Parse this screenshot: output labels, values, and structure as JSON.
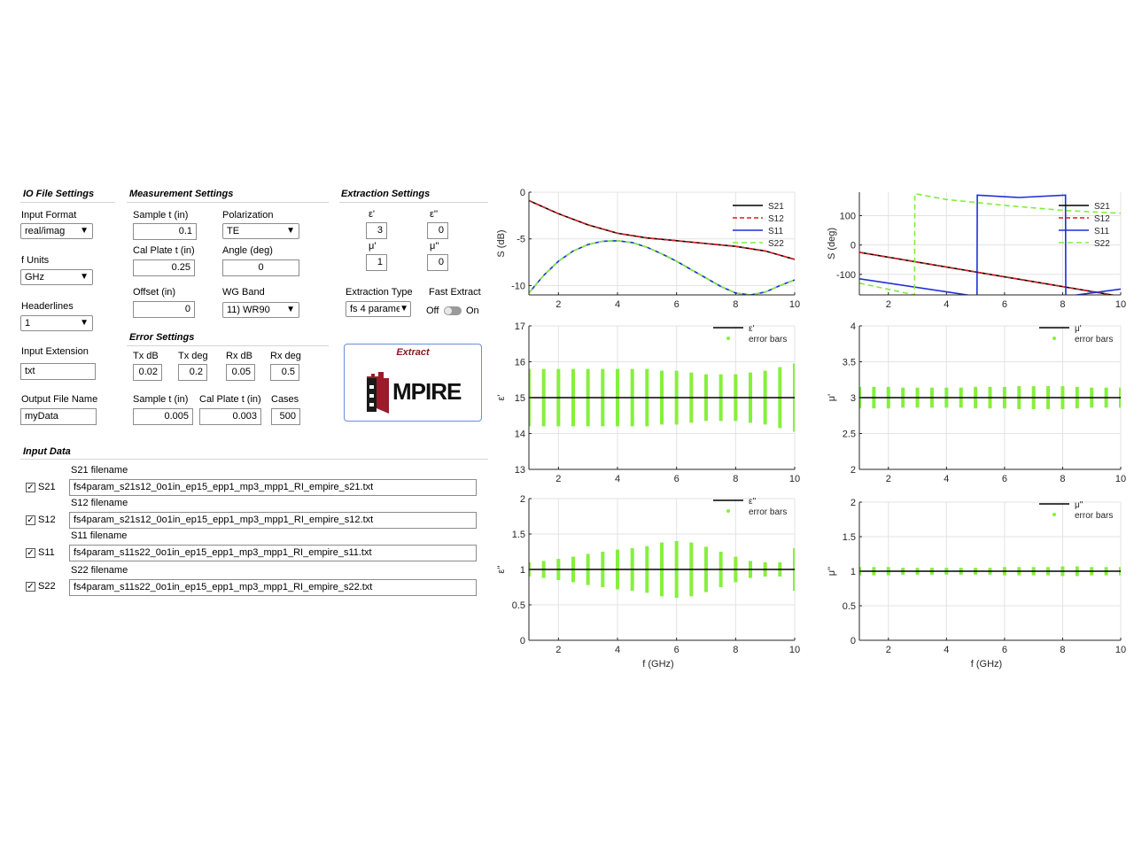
{
  "io": {
    "title": "IO File Settings",
    "input_format_label": "Input Format",
    "input_format": "real/imag",
    "f_units_label": "f Units",
    "f_units": "GHz",
    "headerlines_label": "Headerlines",
    "headerlines": "1",
    "input_ext_label": "Input Extension",
    "input_ext": "txt",
    "output_name_label": "Output File Name",
    "output_name": "myData"
  },
  "meas": {
    "title": "Measurement Settings",
    "sample_t_label": "Sample t (in)",
    "sample_t": "0.1",
    "polarization_label": "Polarization",
    "polarization": "TE",
    "cal_plate_label": "Cal Plate t (in)",
    "cal_plate": "0.25",
    "angle_label": "Angle (deg)",
    "angle": "0",
    "offset_label": "Offset (in)",
    "offset": "0",
    "wg_band_label": "WG Band",
    "wg_band": "11) WR90"
  },
  "err": {
    "title": "Error Settings",
    "tx_db_label": "Tx dB",
    "tx_db": "0.02",
    "tx_deg_label": "Tx deg",
    "tx_deg": "0.2",
    "rx_db_label": "Rx dB",
    "rx_db": "0.05",
    "rx_deg_label": "Rx deg",
    "rx_deg": "0.5",
    "sample_t_label": "Sample t (in)",
    "sample_t": "0.005",
    "cal_plate_label": "Cal Plate t (in)",
    "cal_plate": "0.003",
    "cases_label": "Cases",
    "cases": "500"
  },
  "ext": {
    "title": "Extraction Settings",
    "eps_re_label": "ε'",
    "eps_re": "3",
    "eps_im_label": "ε''",
    "eps_im": "0",
    "mu_re_label": "μ'",
    "mu_re": "1",
    "mu_im_label": "μ''",
    "mu_im": "0",
    "type_label": "Extraction Type",
    "type": "fs 4 parame",
    "fast_label": "Fast Extract",
    "off": "Off",
    "on": "On",
    "button_label": "Extract",
    "logo_text": "MPIRE"
  },
  "input_data": {
    "title": "Input Data",
    "rows": [
      {
        "check": "S21",
        "label": "S21 filename",
        "file": "fs4param_s21s12_0o1in_ep15_epp1_mp3_mpp1_RI_empire_s21.txt"
      },
      {
        "check": "S12",
        "label": "S12 filename",
        "file": "fs4param_s21s12_0o1in_ep15_epp1_mp3_mpp1_RI_empire_s12.txt"
      },
      {
        "check": "S11",
        "label": "S11 filename",
        "file": "fs4param_s11s22_0o1in_ep15_epp1_mp3_mpp1_RI_empire_s11.txt"
      },
      {
        "check": "S22",
        "label": "S22 filename",
        "file": "fs4param_s11s22_0o1in_ep15_epp1_mp3_mpp1_RI_empire_s22.txt"
      }
    ]
  },
  "colors": {
    "s21": "#000000",
    "s12": "#d62020",
    "s11": "#1f2fd8",
    "s22": "#7fee3a",
    "err": "#86f03c"
  },
  "chart_data": [
    {
      "id": "mag",
      "type": "line",
      "ylabel": "S (dB)",
      "xlabel": "",
      "xlim": [
        1,
        10
      ],
      "ylim": [
        -11,
        0
      ],
      "xticks": [
        2,
        4,
        6,
        8,
        10
      ],
      "yticks": [
        0,
        -5,
        -10
      ],
      "legend": [
        "S21",
        "S12",
        "S11",
        "S22"
      ],
      "legend_position": "top-right",
      "series": [
        {
          "name": "S21",
          "x": [
            1,
            2,
            3,
            4,
            5,
            6,
            7,
            8,
            9,
            10
          ],
          "y": [
            -0.9,
            -2.3,
            -3.5,
            -4.4,
            -4.9,
            -5.2,
            -5.5,
            -5.8,
            -6.3,
            -7.2
          ]
        },
        {
          "name": "S12",
          "x": [
            1,
            2,
            3,
            4,
            5,
            6,
            7,
            8,
            9,
            10
          ],
          "y": [
            -0.9,
            -2.3,
            -3.5,
            -4.4,
            -4.9,
            -5.2,
            -5.5,
            -5.8,
            -6.3,
            -7.2
          ]
        },
        {
          "name": "S11",
          "x": [
            1,
            1.5,
            2,
            2.5,
            3,
            3.5,
            4,
            4.5,
            5,
            5.5,
            6,
            6.5,
            7,
            7.5,
            8,
            8.5,
            9,
            9.5,
            10
          ],
          "y": [
            -10.8,
            -8.9,
            -7.4,
            -6.3,
            -5.6,
            -5.25,
            -5.2,
            -5.4,
            -5.9,
            -6.6,
            -7.4,
            -8.3,
            -9.2,
            -10.1,
            -10.8,
            -11.0,
            -10.7,
            -10.0,
            -9.4
          ]
        },
        {
          "name": "S22",
          "x": [
            1,
            1.5,
            2,
            2.5,
            3,
            3.5,
            4,
            4.5,
            5,
            5.5,
            6,
            6.5,
            7,
            7.5,
            8,
            8.5,
            9,
            9.5,
            10
          ],
          "y": [
            -10.8,
            -8.9,
            -7.4,
            -6.3,
            -5.6,
            -5.25,
            -5.2,
            -5.4,
            -5.9,
            -6.6,
            -7.4,
            -8.3,
            -9.2,
            -10.1,
            -10.8,
            -11.0,
            -10.7,
            -10.0,
            -9.4
          ]
        }
      ]
    },
    {
      "id": "phase",
      "type": "line",
      "ylabel": "S (deg)",
      "xlabel": "",
      "xlim": [
        1,
        10
      ],
      "ylim": [
        -170,
        180
      ],
      "xticks": [
        2,
        4,
        6,
        8,
        10
      ],
      "yticks": [
        100,
        0,
        -100
      ],
      "legend": [
        "S21",
        "S12",
        "S11",
        "S22"
      ],
      "legend_position": "top-right",
      "series": [
        {
          "name": "S21",
          "x": [
            1,
            10
          ],
          "y": [
            -25,
            -175
          ]
        },
        {
          "name": "S12",
          "x": [
            1,
            10
          ],
          "y": [
            -25,
            -175
          ]
        },
        {
          "name": "S11",
          "x": [
            1,
            5.05,
            5.06,
            6.5,
            8.1,
            8.11,
            10
          ],
          "y": [
            -115,
            -175,
            170,
            162,
            170,
            -175,
            -150
          ]
        },
        {
          "name": "S22",
          "x": [
            1,
            2.9,
            2.91,
            4,
            6,
            8,
            10
          ],
          "y": [
            -130,
            -170,
            175,
            155,
            135,
            118,
            108
          ]
        }
      ]
    },
    {
      "id": "eps_re",
      "type": "line",
      "ylabel": "ε'",
      "xlabel": "",
      "xlim": [
        1,
        10
      ],
      "ylim": [
        13,
        17
      ],
      "xticks": [
        2,
        4,
        6,
        8,
        10
      ],
      "yticks": [
        17,
        16,
        15,
        14,
        13
      ],
      "legend": [
        "ε'",
        "error bars"
      ],
      "legend_position": "top-right",
      "center": 15,
      "err_x": [
        1,
        1.5,
        2,
        2.5,
        3,
        3.5,
        4,
        4.5,
        5,
        5.5,
        6,
        6.5,
        7,
        7.5,
        8,
        8.5,
        9,
        9.5,
        10
      ],
      "err_half": [
        0.8,
        0.8,
        0.8,
        0.8,
        0.8,
        0.8,
        0.8,
        0.8,
        0.8,
        0.75,
        0.75,
        0.7,
        0.65,
        0.65,
        0.65,
        0.7,
        0.75,
        0.85,
        0.95
      ]
    },
    {
      "id": "mu_re",
      "type": "line",
      "ylabel": "μ'",
      "xlabel": "",
      "xlim": [
        1,
        10
      ],
      "ylim": [
        2,
        4
      ],
      "xticks": [
        2,
        4,
        6,
        8,
        10
      ],
      "yticks": [
        4,
        3.5,
        3,
        2.5,
        2
      ],
      "legend": [
        "μ'",
        "error bars"
      ],
      "legend_position": "top-right",
      "center": 3,
      "err_x": [
        1,
        1.5,
        2,
        2.5,
        3,
        3.5,
        4,
        4.5,
        5,
        5.5,
        6,
        6.5,
        7,
        7.5,
        8,
        8.5,
        9,
        9.5,
        10
      ],
      "err_half": [
        0.15,
        0.15,
        0.15,
        0.14,
        0.14,
        0.14,
        0.14,
        0.14,
        0.15,
        0.15,
        0.15,
        0.16,
        0.16,
        0.16,
        0.16,
        0.15,
        0.14,
        0.14,
        0.14
      ]
    },
    {
      "id": "eps_im",
      "type": "line",
      "ylabel": "ε''",
      "xlabel": "f (GHz)",
      "xlim": [
        1,
        10
      ],
      "ylim": [
        0,
        2
      ],
      "xticks": [
        2,
        4,
        6,
        8,
        10
      ],
      "yticks": [
        2,
        1.5,
        1,
        0.5,
        0
      ],
      "legend": [
        "ε''",
        "error bars"
      ],
      "legend_position": "top-right",
      "center": 1,
      "err_x": [
        1,
        1.5,
        2,
        2.5,
        3,
        3.5,
        4,
        4.5,
        5,
        5.5,
        6,
        6.5,
        7,
        7.5,
        8,
        8.5,
        9,
        9.5,
        10
      ],
      "err_half": [
        0.1,
        0.12,
        0.15,
        0.18,
        0.22,
        0.25,
        0.28,
        0.3,
        0.33,
        0.38,
        0.4,
        0.38,
        0.32,
        0.25,
        0.18,
        0.12,
        0.1,
        0.1,
        0.3
      ]
    },
    {
      "id": "mu_im",
      "type": "line",
      "ylabel": "μ''",
      "xlabel": "f (GHz)",
      "xlim": [
        1,
        10
      ],
      "ylim": [
        0,
        2
      ],
      "xticks": [
        2,
        4,
        6,
        8,
        10
      ],
      "yticks": [
        2,
        1.5,
        1,
        0.5,
        0
      ],
      "legend": [
        "μ''",
        "error bars"
      ],
      "legend_position": "top-right",
      "center": 1,
      "err_x": [
        1,
        1.5,
        2,
        2.5,
        3,
        3.5,
        4,
        4.5,
        5,
        5.5,
        6,
        6.5,
        7,
        7.5,
        8,
        8.5,
        9,
        9.5,
        10
      ],
      "err_half": [
        0.06,
        0.06,
        0.06,
        0.05,
        0.05,
        0.05,
        0.05,
        0.05,
        0.05,
        0.05,
        0.06,
        0.06,
        0.06,
        0.06,
        0.07,
        0.07,
        0.06,
        0.06,
        0.06
      ]
    }
  ]
}
